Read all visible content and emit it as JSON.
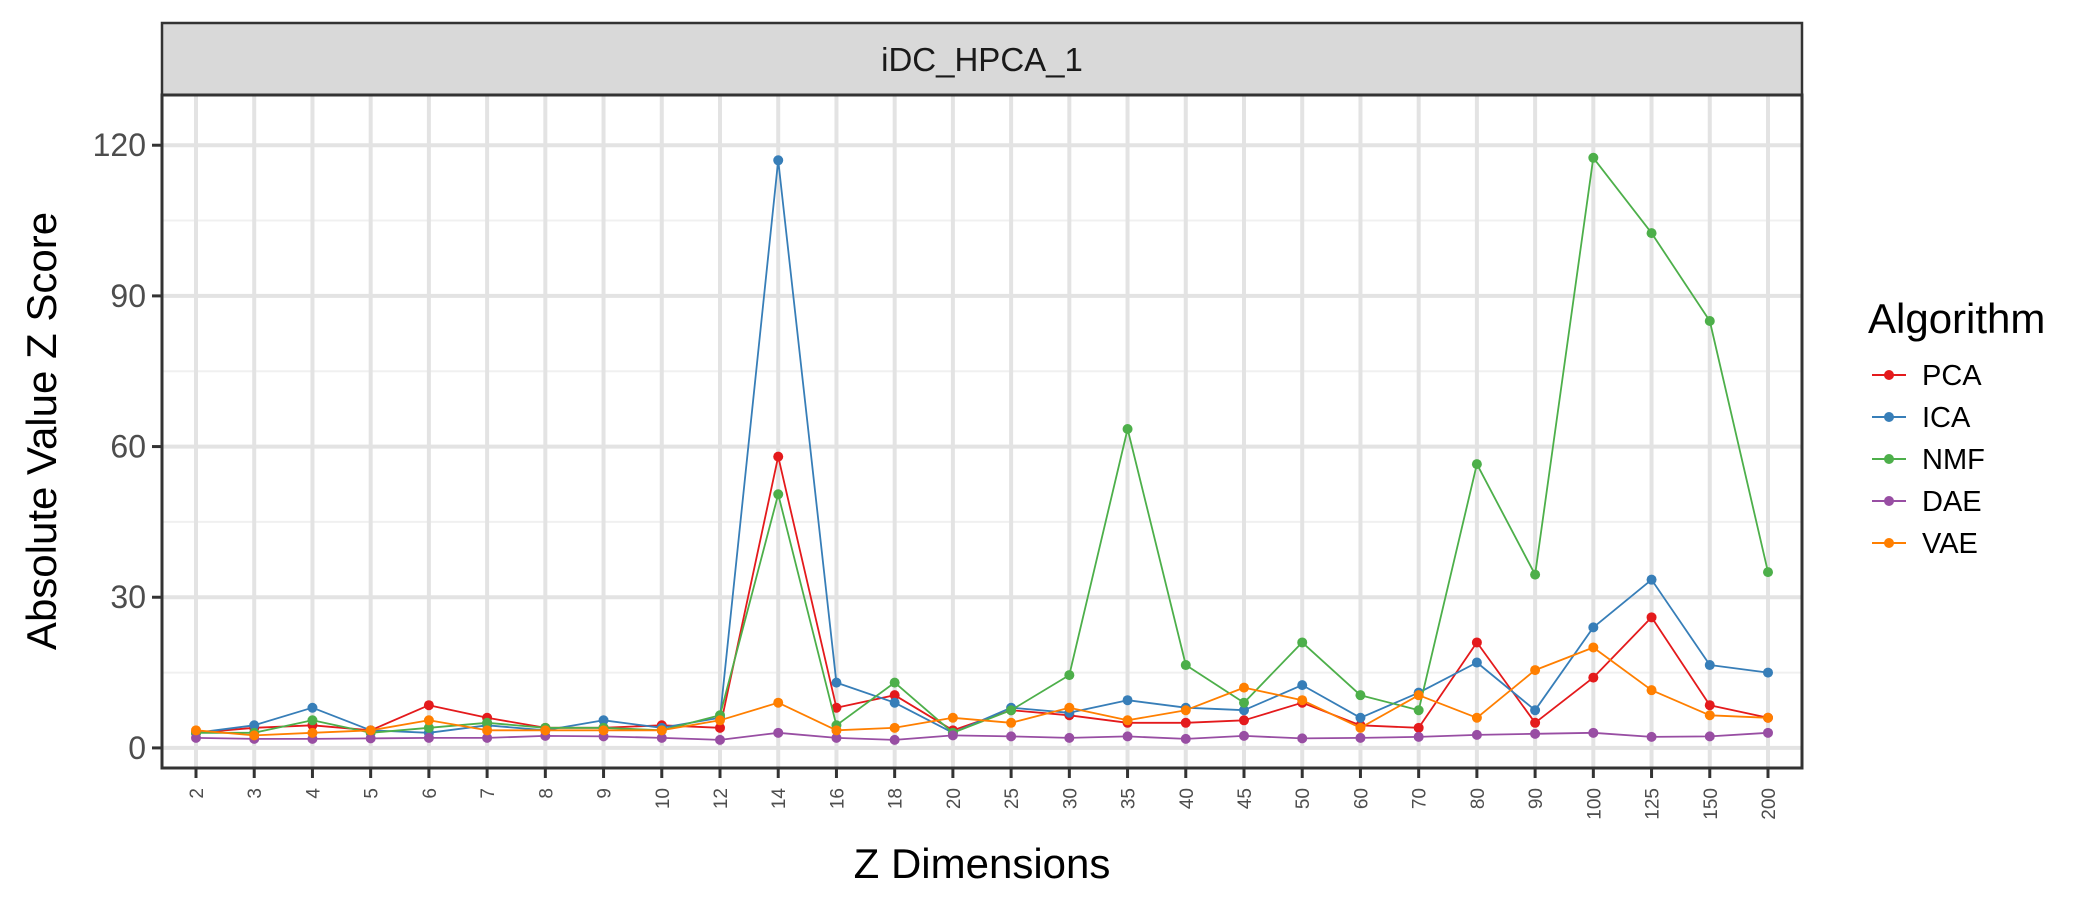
{
  "chart_data": {
    "type": "line",
    "facet_label": "iDC_HPCA_1",
    "xlabel": "Z Dimensions",
    "ylabel": "Absolute Value Z Score",
    "categories": [
      "2",
      "3",
      "4",
      "5",
      "6",
      "7",
      "8",
      "9",
      "10",
      "12",
      "14",
      "16",
      "18",
      "20",
      "25",
      "30",
      "35",
      "40",
      "45",
      "50",
      "60",
      "70",
      "80",
      "90",
      "100",
      "125",
      "150",
      "200"
    ],
    "ylim": [
      -4,
      130
    ],
    "yticks": [
      0,
      30,
      60,
      90,
      120
    ],
    "grid": true,
    "legend": {
      "title": "Algorithm",
      "position": "right"
    },
    "series": [
      {
        "name": "PCA",
        "color": "#e41a1c",
        "values": [
          3.0,
          4.0,
          4.5,
          3.5,
          8.5,
          6.0,
          4.0,
          4.0,
          4.5,
          4.0,
          58.0,
          8.0,
          10.5,
          3.5,
          7.5,
          6.5,
          5.0,
          5.0,
          5.5,
          9.0,
          4.5,
          4.0,
          21.0,
          5.0,
          14.0,
          26.0,
          8.5,
          6.0
        ]
      },
      {
        "name": "ICA",
        "color": "#377eb8",
        "values": [
          3.0,
          4.5,
          8.0,
          3.5,
          3.0,
          4.5,
          3.5,
          5.5,
          4.0,
          6.0,
          117.0,
          13.0,
          9.0,
          3.0,
          8.0,
          7.0,
          9.5,
          8.0,
          7.5,
          12.5,
          6.0,
          11.0,
          17.0,
          7.5,
          24.0,
          33.5,
          16.5,
          15.0
        ]
      },
      {
        "name": "NMF",
        "color": "#4daf4a",
        "values": [
          3.0,
          3.0,
          5.5,
          3.0,
          4.0,
          5.0,
          4.0,
          4.0,
          3.5,
          6.5,
          50.5,
          4.5,
          13.0,
          3.0,
          7.5,
          14.5,
          63.5,
          16.5,
          9.0,
          21.0,
          10.5,
          7.5,
          56.5,
          34.5,
          117.5,
          102.5,
          85.0,
          35.0
        ]
      },
      {
        "name": "DAE",
        "color": "#984ea3",
        "values": [
          2.0,
          1.8,
          1.8,
          1.9,
          2.0,
          2.0,
          2.4,
          2.3,
          2.0,
          1.6,
          3.0,
          2.0,
          1.6,
          2.5,
          2.3,
          2.0,
          2.3,
          1.8,
          2.4,
          1.9,
          2.0,
          2.2,
          2.6,
          2.8,
          3.0,
          2.2,
          2.3,
          3.0
        ]
      },
      {
        "name": "VAE",
        "color": "#ff7f00",
        "values": [
          3.5,
          2.5,
          3.0,
          3.5,
          5.5,
          3.5,
          3.5,
          3.5,
          3.5,
          5.5,
          9.0,
          3.5,
          4.0,
          6.0,
          5.0,
          8.0,
          5.5,
          7.5,
          12.0,
          9.5,
          4.0,
          10.5,
          6.0,
          15.5,
          20.0,
          11.5,
          6.5,
          6.0
        ]
      }
    ]
  }
}
